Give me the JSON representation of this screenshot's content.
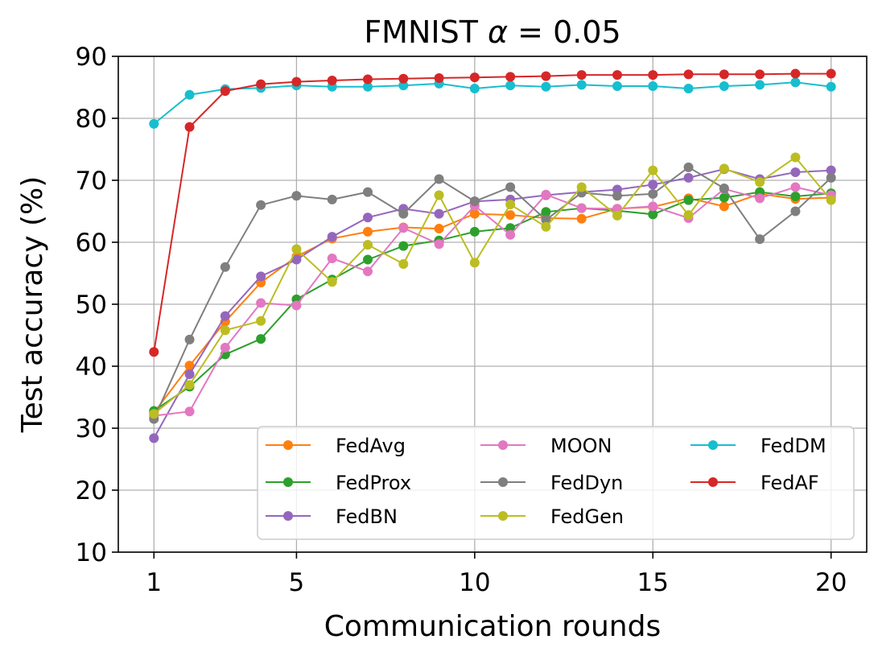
{
  "chart_data": {
    "type": "line",
    "title_prefix": "FMNIST ",
    "title_symbol": "α",
    "title_suffix": " = 0.05",
    "xlabel": "Communication rounds",
    "ylabel": "Test accuracy (%)",
    "xlim": [
      0,
      21
    ],
    "ylim": [
      10,
      90
    ],
    "xticks": [
      1,
      5,
      10,
      15,
      20
    ],
    "yticks": [
      10,
      20,
      30,
      40,
      50,
      60,
      70,
      80,
      90
    ],
    "grid": true,
    "legend_position": "lower-right",
    "x": [
      1,
      2,
      3,
      4,
      5,
      6,
      7,
      8,
      9,
      10,
      11,
      12,
      13,
      14,
      15,
      16,
      17,
      18,
      19,
      20
    ],
    "series": [
      {
        "name": "FedAvg",
        "color": "#ff7f0e",
        "values": [
          32.5,
          40.1,
          47.2,
          53.5,
          57.7,
          60.6,
          61.7,
          62.4,
          62.2,
          64.6,
          64.4,
          63.9,
          63.8,
          65.4,
          65.7,
          67.1,
          65.8,
          67.8,
          67.0,
          67.2
        ]
      },
      {
        "name": "FedProx",
        "color": "#2ca02c",
        "values": [
          32.8,
          36.7,
          41.9,
          44.4,
          50.8,
          54.0,
          57.2,
          59.4,
          60.3,
          61.7,
          62.3,
          64.9,
          65.5,
          65.1,
          64.5,
          66.8,
          67.2,
          68.1,
          67.4,
          67.9
        ]
      },
      {
        "name": "FedBN",
        "color": "#9467bd",
        "values": [
          28.4,
          38.7,
          48.1,
          54.5,
          57.2,
          60.9,
          64.0,
          65.4,
          64.6,
          66.6,
          66.9,
          67.6,
          68.1,
          68.5,
          69.3,
          70.4,
          71.8,
          70.2,
          71.3,
          71.6
        ]
      },
      {
        "name": "MOON",
        "color": "#e377c2",
        "values": [
          32.0,
          32.7,
          43.0,
          50.2,
          49.8,
          57.4,
          55.3,
          62.3,
          59.7,
          65.9,
          61.2,
          67.7,
          65.5,
          65.4,
          65.8,
          63.9,
          68.6,
          67.1,
          68.9,
          67.6
        ]
      },
      {
        "name": "FedDyn",
        "color": "#7f7f7f",
        "values": [
          31.5,
          44.3,
          56.0,
          66.0,
          67.5,
          66.9,
          68.1,
          64.6,
          70.2,
          66.6,
          68.9,
          63.6,
          68.0,
          67.5,
          67.8,
          72.1,
          68.7,
          60.5,
          65.0,
          70.4
        ]
      },
      {
        "name": "FedGen",
        "color": "#bcbd22",
        "values": [
          32.3,
          37.0,
          45.8,
          47.3,
          58.9,
          53.6,
          59.6,
          56.5,
          67.6,
          56.7,
          66.1,
          62.5,
          68.9,
          64.3,
          71.6,
          64.4,
          71.9,
          69.7,
          73.7,
          66.8
        ]
      },
      {
        "name": "FedDM",
        "color": "#17becf",
        "values": [
          79.1,
          83.8,
          84.7,
          84.9,
          85.3,
          85.1,
          85.1,
          85.3,
          85.6,
          84.8,
          85.3,
          85.1,
          85.4,
          85.2,
          85.2,
          84.8,
          85.2,
          85.4,
          85.8,
          85.1
        ]
      },
      {
        "name": "FedAF",
        "color": "#d62728",
        "values": [
          42.3,
          78.6,
          84.4,
          85.5,
          85.9,
          86.1,
          86.3,
          86.4,
          86.5,
          86.6,
          86.7,
          86.8,
          87.0,
          87.0,
          87.0,
          87.1,
          87.1,
          87.1,
          87.2,
          87.2
        ]
      }
    ]
  }
}
